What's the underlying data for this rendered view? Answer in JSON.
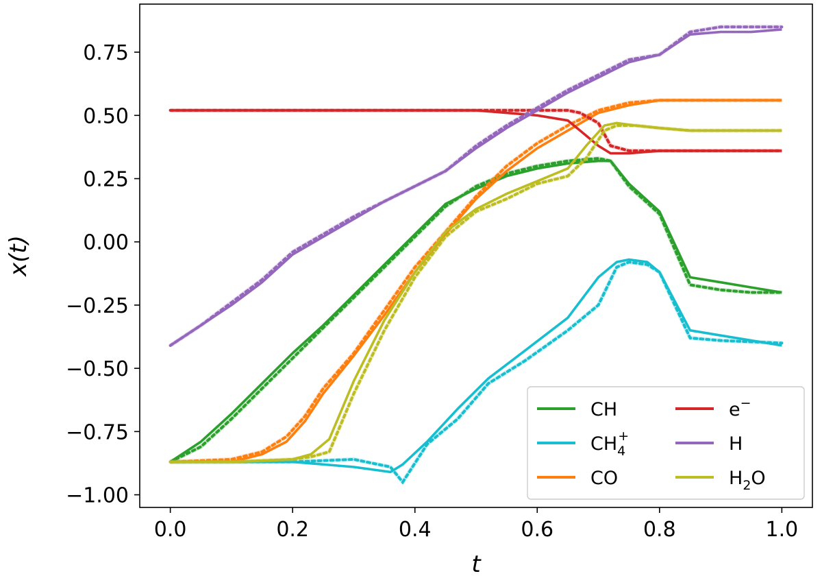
{
  "chart_data": {
    "type": "line",
    "title": "",
    "xlabel": "t",
    "ylabel": "x(t)",
    "xlim": [
      -0.05,
      1.05
    ],
    "ylim": [
      -1.05,
      0.94
    ],
    "xticks": [
      0.0,
      0.2,
      0.4,
      0.6,
      0.8,
      1.0
    ],
    "yticks": [
      -1.0,
      -0.75,
      -0.5,
      -0.25,
      0.0,
      0.25,
      0.5,
      0.75
    ],
    "xtick_labels": [
      "0.0",
      "0.2",
      "0.4",
      "0.6",
      "0.8",
      "1.0"
    ],
    "ytick_labels": [
      "−1.00",
      "−0.75",
      "−0.50",
      "−0.25",
      "0.00",
      "0.25",
      "0.50",
      "0.75"
    ],
    "grid": false,
    "legend": {
      "position": "bottom-right",
      "columns": 2,
      "entries": [
        {
          "series": 0,
          "label": "CH"
        },
        {
          "series": 1,
          "label_main": "CH",
          "label_sub": "4",
          "label_sup": "+"
        },
        {
          "series": 2,
          "label": "CO"
        },
        {
          "series": 3,
          "label_main": "e",
          "label_sup": "−"
        },
        {
          "series": 4,
          "label": "H"
        },
        {
          "series": 5,
          "label_main": "H",
          "label_sub": "2",
          "label_end": "O"
        }
      ]
    },
    "series": [
      {
        "name": "CH",
        "color": "#2ca02c",
        "x": [
          0.0,
          0.05,
          0.1,
          0.15,
          0.2,
          0.25,
          0.3,
          0.35,
          0.4,
          0.45,
          0.5,
          0.55,
          0.6,
          0.65,
          0.7,
          0.72,
          0.75,
          0.8,
          0.85,
          0.9,
          0.95,
          1.0
        ],
        "solid": [
          -0.87,
          -0.79,
          -0.68,
          -0.56,
          -0.44,
          -0.33,
          -0.21,
          -0.09,
          0.03,
          0.15,
          0.21,
          0.26,
          0.29,
          0.31,
          0.32,
          0.32,
          0.23,
          0.12,
          -0.14,
          -0.16,
          -0.18,
          -0.2
        ],
        "dotted": [
          -0.87,
          -0.81,
          -0.7,
          -0.58,
          -0.46,
          -0.34,
          -0.22,
          -0.1,
          0.02,
          0.14,
          0.22,
          0.27,
          0.3,
          0.32,
          0.33,
          0.32,
          0.22,
          0.11,
          -0.17,
          -0.19,
          -0.2,
          -0.2
        ]
      },
      {
        "name": "CH4+",
        "color": "#17becf",
        "x": [
          0.0,
          0.1,
          0.2,
          0.3,
          0.36,
          0.38,
          0.42,
          0.47,
          0.52,
          0.58,
          0.65,
          0.7,
          0.73,
          0.75,
          0.78,
          0.8,
          0.85,
          0.9,
          1.0
        ],
        "solid": [
          -0.87,
          -0.87,
          -0.87,
          -0.89,
          -0.91,
          -0.88,
          -0.79,
          -0.66,
          -0.54,
          -0.43,
          -0.3,
          -0.14,
          -0.08,
          -0.07,
          -0.08,
          -0.12,
          -0.35,
          -0.37,
          -0.41
        ],
        "dotted": [
          -0.87,
          -0.87,
          -0.87,
          -0.86,
          -0.89,
          -0.95,
          -0.8,
          -0.7,
          -0.56,
          -0.47,
          -0.35,
          -0.25,
          -0.1,
          -0.08,
          -0.09,
          -0.12,
          -0.38,
          -0.39,
          -0.4
        ]
      },
      {
        "name": "CO",
        "color": "#ff7f0e",
        "x": [
          0.0,
          0.1,
          0.15,
          0.19,
          0.22,
          0.25,
          0.3,
          0.35,
          0.4,
          0.45,
          0.5,
          0.55,
          0.6,
          0.65,
          0.7,
          0.75,
          0.8,
          0.85,
          0.9,
          1.0
        ],
        "solid": [
          -0.87,
          -0.87,
          -0.84,
          -0.79,
          -0.71,
          -0.6,
          -0.45,
          -0.29,
          -0.12,
          0.03,
          0.17,
          0.28,
          0.37,
          0.44,
          0.51,
          0.54,
          0.56,
          0.56,
          0.56,
          0.56
        ],
        "dotted": [
          -0.87,
          -0.86,
          -0.83,
          -0.77,
          -0.69,
          -0.58,
          -0.44,
          -0.27,
          -0.1,
          0.04,
          0.18,
          0.3,
          0.39,
          0.46,
          0.52,
          0.55,
          0.56,
          0.56,
          0.56,
          0.56
        ]
      },
      {
        "name": "e−",
        "color": "#d62728",
        "x": [
          0.0,
          0.1,
          0.2,
          0.3,
          0.4,
          0.5,
          0.55,
          0.6,
          0.65,
          0.67,
          0.7,
          0.72,
          0.75,
          0.8,
          0.85,
          0.9,
          1.0
        ],
        "solid": [
          0.52,
          0.52,
          0.52,
          0.52,
          0.52,
          0.52,
          0.51,
          0.5,
          0.48,
          0.44,
          0.38,
          0.35,
          0.35,
          0.36,
          0.36,
          0.36,
          0.36
        ],
        "dotted": [
          0.52,
          0.52,
          0.52,
          0.52,
          0.52,
          0.52,
          0.52,
          0.52,
          0.52,
          0.51,
          0.47,
          0.38,
          0.36,
          0.36,
          0.36,
          0.36,
          0.36
        ]
      },
      {
        "name": "H",
        "color": "#9467bd",
        "x": [
          0.0,
          0.05,
          0.1,
          0.15,
          0.2,
          0.25,
          0.3,
          0.35,
          0.4,
          0.45,
          0.5,
          0.55,
          0.6,
          0.65,
          0.7,
          0.75,
          0.8,
          0.85,
          0.9,
          0.95,
          1.0
        ],
        "solid": [
          -0.41,
          -0.33,
          -0.25,
          -0.16,
          -0.05,
          0.02,
          0.09,
          0.16,
          0.22,
          0.28,
          0.37,
          0.45,
          0.52,
          0.59,
          0.65,
          0.71,
          0.74,
          0.82,
          0.83,
          0.83,
          0.84
        ],
        "dotted": [
          -0.41,
          -0.33,
          -0.24,
          -0.15,
          -0.04,
          0.03,
          0.1,
          0.16,
          0.22,
          0.28,
          0.38,
          0.46,
          0.53,
          0.6,
          0.66,
          0.72,
          0.74,
          0.83,
          0.85,
          0.85,
          0.85
        ]
      },
      {
        "name": "H2O",
        "color": "#bcbd22",
        "x": [
          0.0,
          0.1,
          0.2,
          0.23,
          0.26,
          0.3,
          0.35,
          0.4,
          0.45,
          0.5,
          0.55,
          0.6,
          0.65,
          0.68,
          0.71,
          0.73,
          0.76,
          0.8,
          0.85,
          0.9,
          1.0
        ],
        "solid": [
          -0.87,
          -0.87,
          -0.86,
          -0.84,
          -0.78,
          -0.55,
          -0.31,
          -0.12,
          0.04,
          0.13,
          0.19,
          0.24,
          0.29,
          0.38,
          0.46,
          0.47,
          0.46,
          0.45,
          0.44,
          0.44,
          0.44
        ],
        "dotted": [
          -0.87,
          -0.87,
          -0.86,
          -0.85,
          -0.83,
          -0.6,
          -0.35,
          -0.14,
          0.02,
          0.12,
          0.17,
          0.23,
          0.26,
          0.33,
          0.44,
          0.46,
          0.46,
          0.45,
          0.44,
          0.44,
          0.44
        ]
      }
    ]
  }
}
